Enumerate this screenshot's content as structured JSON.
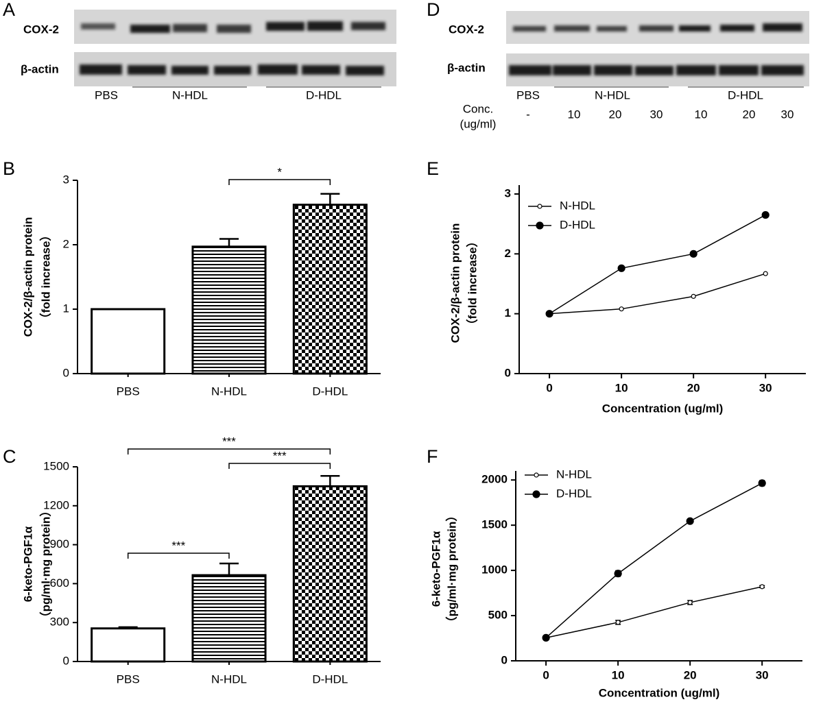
{
  "blot_A": {
    "panel": "A",
    "rows": [
      "COX-2",
      "β-actin"
    ],
    "groups": [
      "PBS",
      "N-HDL",
      "D-HDL"
    ]
  },
  "blot_D": {
    "panel": "D",
    "rows": [
      "COX-2",
      "β-actin"
    ],
    "groups": [
      "PBS",
      "N-HDL",
      "D-HDL"
    ],
    "conc_label": "Conc.",
    "conc_unit": "(ug/ml)",
    "concentrations": [
      "-",
      "10",
      "20",
      "30",
      "10",
      "20",
      "30"
    ]
  },
  "chart_data": [
    {
      "type": "bar",
      "panel": "B",
      "ylabel": [
        "COX-2/β-actin protein",
        "（fold increase）"
      ],
      "categories": [
        "PBS",
        "N-HDL",
        "D-HDL"
      ],
      "values": [
        1,
        1.97,
        2.62
      ],
      "errors": [
        0,
        0.12,
        0.17
      ],
      "patterns": [
        "none",
        "horizontal-lines",
        "checker"
      ],
      "ylim": [
        0,
        3
      ],
      "yticks": [
        0,
        1,
        2,
        3
      ],
      "annotations": [
        "*"
      ]
    },
    {
      "type": "bar",
      "panel": "C",
      "ylabel": [
        "6-keto-PGF1α",
        "（pg/ml·mg protein）"
      ],
      "categories": [
        "PBS",
        "N-HDL",
        "D-HDL"
      ],
      "values": [
        255,
        665,
        1350
      ],
      "errors": [
        10,
        90,
        80
      ],
      "patterns": [
        "none",
        "horizontal-lines",
        "checker"
      ],
      "ylim": [
        0,
        1500
      ],
      "yticks": [
        0,
        300,
        600,
        900,
        1200,
        1500
      ],
      "annotations": [
        "***",
        "***",
        "***"
      ]
    },
    {
      "type": "line",
      "panel": "E",
      "ylabel": [
        "COX-2/β-actin protein",
        "（fold increase）"
      ],
      "xlabel": "Concentration (ug/ml)",
      "x": [
        0,
        10,
        20,
        30
      ],
      "series": [
        {
          "name": "N-HDL",
          "color": "#000000",
          "marker": "open",
          "values": [
            1,
            1.08,
            1.29,
            1.67
          ]
        },
        {
          "name": "D-HDL",
          "color": "#000000",
          "marker": "filled",
          "values": [
            1,
            1.76,
            2.0,
            2.65
          ]
        }
      ],
      "xlim": [
        -4.2,
        35.6
      ],
      "xticks": [
        0,
        10,
        20,
        30
      ],
      "ylim": [
        0,
        3
      ],
      "yticks": [
        0,
        1,
        2,
        3
      ],
      "legend": "upper-left"
    },
    {
      "type": "line",
      "panel": "F",
      "ylabel": [
        "6-keto-PGF1α",
        "（pg/ml·mg protein）"
      ],
      "xlabel": "Concentration (ug/ml)",
      "x": [
        0,
        10,
        20,
        30
      ],
      "series": [
        {
          "name": "N-HDL",
          "color": "#000000",
          "marker": "open",
          "values": [
            255,
            425,
            645,
            820
          ],
          "errors": [
            10,
            22,
            22,
            12
          ]
        },
        {
          "name": "D-HDL",
          "color": "#000000",
          "marker": "filled",
          "values": [
            255,
            965,
            1545,
            1965
          ],
          "errors": [
            10,
            32,
            15,
            30
          ]
        }
      ],
      "xlim": [
        -4.2,
        35.6
      ],
      "xticks": [
        0,
        10,
        20,
        30
      ],
      "ylim": [
        0,
        2100
      ],
      "yticks": [
        0,
        500,
        1000,
        1500,
        2000
      ],
      "legend": "upper-left"
    }
  ]
}
